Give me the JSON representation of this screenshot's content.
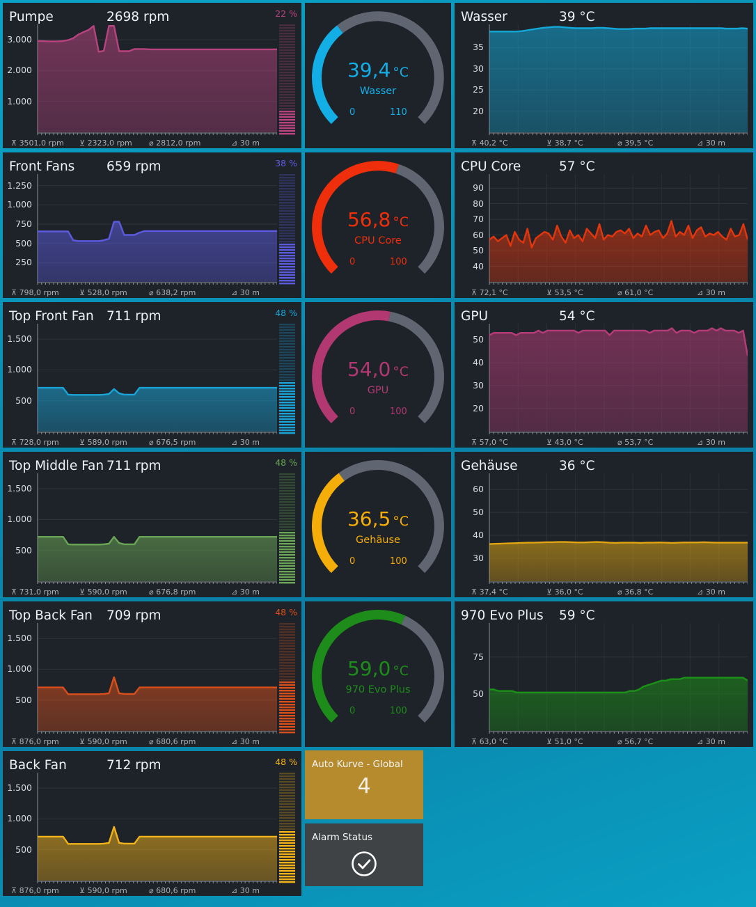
{
  "fans": [
    {
      "title": "Pumpe",
      "value": "2698 rpm",
      "percent": "22 %",
      "percent_value": 22,
      "color": "#b7437f",
      "ticks": [
        "3.000",
        "2.000",
        "1.000"
      ],
      "tick_values": [
        3000,
        2000,
        1000
      ],
      "ymax": 3500,
      "footer": {
        "max": "3501,0 rpm",
        "min": "2323,0 rpm",
        "avg": "2812,0 rpm",
        "range": "30 m"
      },
      "series": [
        2960,
        2960,
        2950,
        2950,
        2950,
        2960,
        2990,
        3050,
        3170,
        3250,
        3320,
        3450,
        2610,
        2640,
        3450,
        3450,
        2630,
        2630,
        2630,
        2700,
        2700,
        2700,
        2690,
        2690,
        2690,
        2690,
        2690,
        2690,
        2690,
        2690,
        2690,
        2690,
        2690,
        2690,
        2690,
        2690,
        2690,
        2690,
        2690,
        2690,
        2690,
        2690,
        2690,
        2690,
        2690,
        2690,
        2690,
        2690
      ]
    },
    {
      "title": "Front Fans",
      "value": "659 rpm",
      "percent": "38 %",
      "percent_value": 38,
      "color": "#5c5be0",
      "ticks": [
        "1.250",
        "1.000",
        "750",
        "500",
        "250"
      ],
      "tick_values": [
        1250,
        1000,
        750,
        500,
        250
      ],
      "ymax": 1400,
      "footer": {
        "max": "798,0 rpm",
        "min": "528,0 rpm",
        "avg": "638,2 rpm",
        "range": "30 m"
      },
      "series": [
        655,
        655,
        655,
        655,
        655,
        655,
        655,
        540,
        530,
        530,
        530,
        530,
        530,
        540,
        560,
        780,
        780,
        610,
        610,
        610,
        640,
        660,
        660,
        660,
        660,
        660,
        660,
        660,
        660,
        660,
        660,
        660,
        660,
        660,
        660,
        660,
        660,
        660,
        660,
        660,
        660,
        660,
        660,
        660,
        660,
        660,
        660,
        660
      ]
    },
    {
      "title": "Top Front Fan",
      "value": "711 rpm",
      "percent": "48 %",
      "percent_value": 48,
      "color": "#1aa3d6",
      "ticks": [
        "1.500",
        "1.000",
        "500"
      ],
      "tick_values": [
        1500,
        1000,
        500
      ],
      "ymax": 1750,
      "footer": {
        "max": "728,0 rpm",
        "min": "589,0 rpm",
        "avg": "676,5 rpm",
        "range": "30 m"
      },
      "series": [
        710,
        710,
        710,
        710,
        710,
        710,
        600,
        595,
        595,
        595,
        595,
        595,
        595,
        600,
        610,
        690,
        620,
        600,
        600,
        600,
        710,
        710,
        710,
        710,
        710,
        710,
        710,
        710,
        710,
        710,
        710,
        710,
        710,
        710,
        710,
        710,
        710,
        710,
        710,
        710,
        710,
        710,
        710,
        710,
        710,
        710,
        710,
        710
      ]
    },
    {
      "title": "Top Middle Fan",
      "value": "711 rpm",
      "percent": "48 %",
      "percent_value": 48,
      "color": "#6aa556",
      "ticks": [
        "1.500",
        "1.000",
        "500"
      ],
      "tick_values": [
        1500,
        1000,
        500
      ],
      "ymax": 1750,
      "footer": {
        "max": "731,0 rpm",
        "min": "590,0 rpm",
        "avg": "676,8 rpm",
        "range": "30 m"
      },
      "series": [
        720,
        720,
        720,
        720,
        720,
        720,
        600,
        595,
        595,
        595,
        595,
        595,
        595,
        600,
        610,
        720,
        620,
        600,
        600,
        600,
        720,
        720,
        720,
        720,
        720,
        720,
        720,
        720,
        720,
        720,
        720,
        720,
        720,
        720,
        720,
        720,
        720,
        720,
        720,
        720,
        720,
        720,
        720,
        720,
        720,
        720,
        720,
        720
      ]
    },
    {
      "title": "Top Back Fan",
      "value": "709 rpm",
      "percent": "48 %",
      "percent_value": 48,
      "color": "#d84f1c",
      "ticks": [
        "1.500",
        "1.000",
        "500"
      ],
      "tick_values": [
        1500,
        1000,
        500
      ],
      "ymax": 1750,
      "footer": {
        "max": "876,0 rpm",
        "min": "590,0 rpm",
        "avg": "680,6 rpm",
        "range": "30 m"
      },
      "series": [
        705,
        705,
        705,
        705,
        705,
        705,
        595,
        595,
        595,
        595,
        595,
        595,
        595,
        600,
        610,
        870,
        610,
        600,
        600,
        600,
        705,
        705,
        705,
        705,
        705,
        705,
        705,
        705,
        705,
        705,
        705,
        705,
        705,
        705,
        705,
        705,
        705,
        705,
        705,
        705,
        705,
        705,
        705,
        705,
        705,
        705,
        705,
        705
      ]
    },
    {
      "title": "Back Fan",
      "value": "712 rpm",
      "percent": "48 %",
      "percent_value": 48,
      "color": "#f2b21a",
      "ticks": [
        "1.500",
        "1.000",
        "500"
      ],
      "tick_values": [
        1500,
        1000,
        500
      ],
      "ymax": 1750,
      "footer": {
        "max": "876,0 rpm",
        "min": "590,0 rpm",
        "avg": "680,6 rpm",
        "range": "30 m"
      },
      "series": [
        712,
        712,
        712,
        712,
        712,
        712,
        595,
        595,
        595,
        595,
        595,
        595,
        595,
        600,
        610,
        870,
        610,
        600,
        600,
        600,
        712,
        712,
        712,
        712,
        712,
        712,
        712,
        712,
        712,
        712,
        712,
        712,
        712,
        712,
        712,
        712,
        712,
        712,
        712,
        712,
        712,
        712,
        712,
        712,
        712,
        712,
        712,
        712
      ]
    }
  ],
  "gauges": [
    {
      "value": "39,4",
      "unit": "°C",
      "name": "Wasser",
      "min": "0",
      "max": "110",
      "fraction": 0.358,
      "color": "#14aee6"
    },
    {
      "value": "56,8",
      "unit": "°C",
      "name": "CPU Core",
      "min": "0",
      "max": "100",
      "fraction": 0.568,
      "color": "#ef2f0c"
    },
    {
      "value": "54,0",
      "unit": "°C",
      "name": "GPU",
      "min": "0",
      "max": "100",
      "fraction": 0.54,
      "color": "#b23872"
    },
    {
      "value": "36,5",
      "unit": "°C",
      "name": "Gehäuse",
      "min": "0",
      "max": "100",
      "fraction": 0.365,
      "color": "#f5ad09"
    },
    {
      "value": "59,0",
      "unit": "°C",
      "name": "970 Evo Plus",
      "min": "0",
      "max": "100",
      "fraction": 0.59,
      "color": "#1e8c1a"
    }
  ],
  "temps": [
    {
      "title": "Wasser",
      "value": "39 °C",
      "color": "#13a8d8",
      "ticks": [
        "35",
        "30",
        "25",
        "20"
      ],
      "tick_values": [
        35,
        30,
        25,
        20
      ],
      "ymin": 15,
      "ymax": 40.5,
      "footer": {
        "max": "40,2 °C",
        "min": "38,7 °C",
        "avg": "39,5 °C",
        "range": "30 m"
      },
      "series": [
        38.8,
        38.8,
        38.8,
        38.8,
        38.8,
        38.8,
        38.9,
        39.1,
        39.3,
        39.5,
        39.7,
        39.8,
        39.9,
        39.9,
        39.8,
        39.7,
        39.6,
        39.6,
        39.6,
        39.6,
        39.7,
        39.7,
        39.6,
        39.5,
        39.4,
        39.4,
        39.4,
        39.5,
        39.5,
        39.5,
        39.6,
        39.6,
        39.6,
        39.6,
        39.6,
        39.6,
        39.6,
        39.6,
        39.6,
        39.6,
        39.6,
        39.6,
        39.6,
        39.6,
        39.5,
        39.5,
        39.5,
        39.6,
        39.5
      ]
    },
    {
      "title": "CPU Core",
      "value": "57 °C",
      "color": "#e4360d",
      "ticks": [
        "90",
        "80",
        "70",
        "60",
        "50",
        "40"
      ],
      "tick_values": [
        90,
        80,
        70,
        60,
        50,
        40
      ],
      "ymin": 30,
      "ymax": 99,
      "footer": {
        "max": "72,1 °C",
        "min": "53,5 °C",
        "avg": "61,0 °C",
        "range": "30 m"
      },
      "series": [
        57,
        59,
        56,
        58,
        60,
        53,
        62,
        57,
        55,
        64,
        52,
        58,
        60,
        62,
        61,
        57,
        66,
        59,
        55,
        63,
        58,
        60,
        56,
        64,
        61,
        58,
        67,
        57,
        60,
        59,
        62,
        63,
        61,
        64,
        58,
        61,
        59,
        66,
        60,
        62,
        63,
        58,
        61,
        69,
        59,
        62,
        60,
        66,
        58,
        63,
        65,
        59,
        61,
        60,
        62,
        59,
        57,
        64,
        59,
        60,
        67,
        57
      ]
    },
    {
      "title": "GPU",
      "value": "54 °C",
      "color": "#b53c78",
      "ticks": [
        "50",
        "40",
        "30",
        "20"
      ],
      "tick_values": [
        50,
        40,
        30,
        20
      ],
      "ymin": 10,
      "ymax": 57,
      "footer": {
        "max": "57,0 °C",
        "min": "43,0 °C",
        "avg": "53,7 °C",
        "range": "30 m"
      },
      "series": [
        52,
        53,
        53,
        53,
        53,
        53,
        52,
        53,
        53,
        53,
        53,
        54,
        53,
        54,
        54,
        54,
        54,
        54,
        54,
        54,
        53,
        54,
        54,
        54,
        54,
        54,
        54,
        52,
        54,
        54,
        54,
        54,
        54,
        54,
        54,
        54,
        53,
        54,
        54,
        54,
        54,
        55,
        53,
        54,
        54,
        54,
        53,
        54,
        54,
        54,
        55,
        54,
        55,
        54,
        54,
        54,
        53,
        54,
        43
      ]
    },
    {
      "title": "Gehäuse",
      "value": "36 °C",
      "color": "#e0a511",
      "ticks": [
        "60",
        "50",
        "40",
        "30"
      ],
      "tick_values": [
        60,
        50,
        40,
        30
      ],
      "ymin": 20,
      "ymax": 67,
      "footer": {
        "max": "37,4 °C",
        "min": "36,0 °C",
        "avg": "36,8 °C",
        "range": "30 m"
      },
      "series": [
        36.2,
        36.3,
        36.4,
        36.5,
        36.6,
        36.7,
        36.8,
        36.8,
        36.9,
        37.0,
        37.0,
        37.1,
        37.1,
        37.0,
        36.9,
        36.9,
        37.0,
        37.1,
        37.0,
        36.8,
        36.7,
        36.8,
        36.8,
        36.8,
        36.7,
        36.8,
        36.8,
        36.9,
        36.8,
        36.7,
        36.8,
        36.9,
        36.9,
        36.9,
        37.0,
        36.9,
        36.8,
        36.8,
        36.8,
        36.8,
        36.8,
        36.8
      ]
    },
    {
      "title": "970 Evo Plus",
      "value": "59 °C",
      "color": "#1c9118",
      "ticks": [
        "75",
        "50"
      ],
      "tick_values": [
        75,
        50
      ],
      "ymin": 25,
      "ymax": 98,
      "footer": {
        "max": "63,0 °C",
        "min": "51,0 °C",
        "avg": "56,7 °C",
        "range": "30 m"
      },
      "series": [
        53,
        53,
        52,
        52,
        52,
        52,
        51,
        51,
        51,
        51,
        51,
        51,
        51,
        51,
        51,
        51,
        51,
        51,
        51,
        51,
        51,
        51,
        51,
        51,
        51,
        51,
        51,
        51,
        51,
        51,
        51,
        52,
        52,
        53,
        55,
        56,
        57,
        58,
        59,
        59,
        60,
        60,
        60,
        61,
        61,
        61,
        61,
        61,
        61,
        61,
        61,
        61,
        61,
        61,
        61,
        61,
        61,
        59
      ]
    }
  ],
  "tiles": {
    "auto_kurve": {
      "title": "Auto Kurve - Global",
      "value": "4"
    },
    "alarm": {
      "title": "Alarm Status"
    }
  }
}
